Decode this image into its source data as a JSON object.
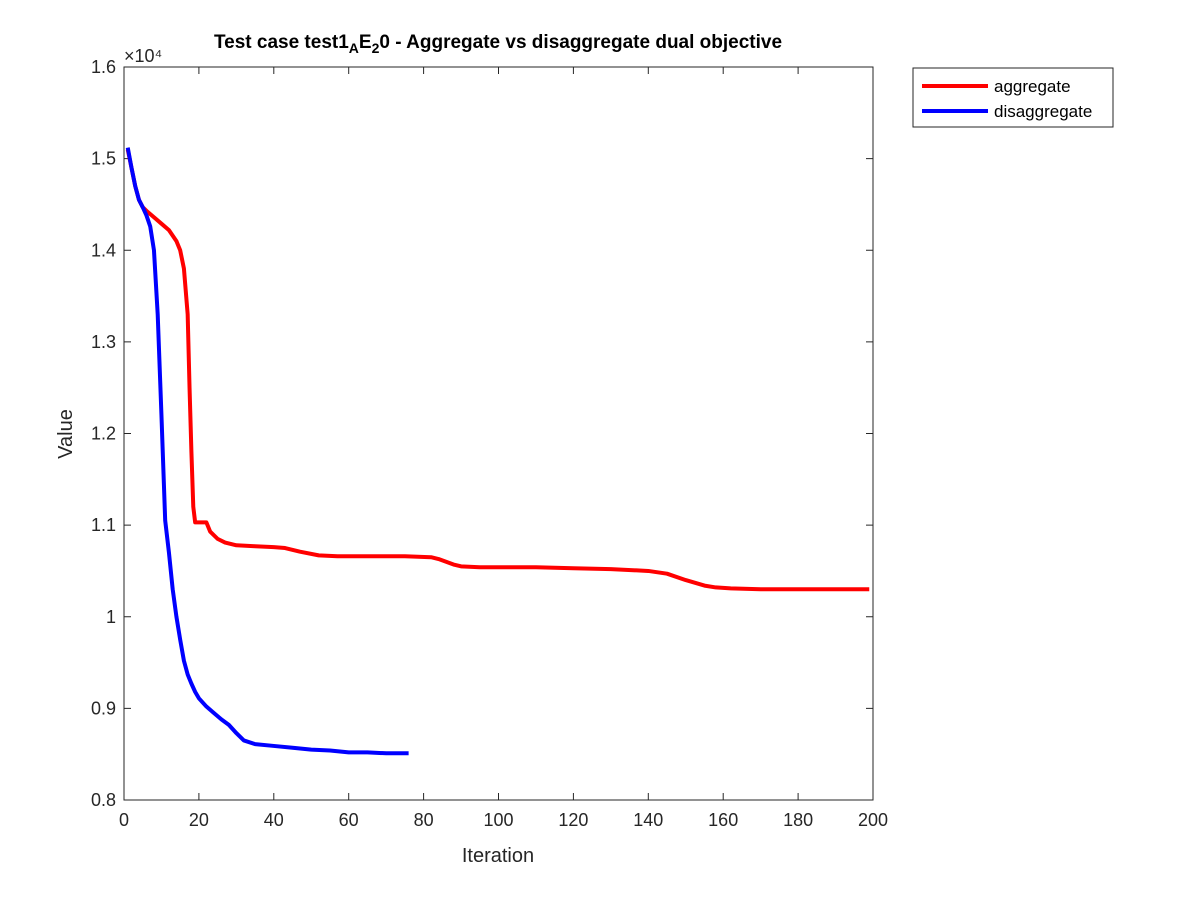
{
  "chart_data": {
    "type": "line",
    "title_parts": {
      "a": "Test case test1",
      "sub1": "A",
      "b": "E",
      "sub2": "2",
      "c": "0 - Aggregate vs disaggregate dual objective"
    },
    "xlabel": "Iteration",
    "ylabel": "Value",
    "exponent_label": "×10⁴",
    "xlim": [
      0,
      200
    ],
    "ylim": [
      0.8,
      1.6
    ],
    "xticks": [
      "0",
      "20",
      "40",
      "60",
      "80",
      "100",
      "120",
      "140",
      "160",
      "180",
      "200"
    ],
    "yticks": [
      "0.8",
      "0.9",
      "1",
      "1.1",
      "1.2",
      "1.3",
      "1.4",
      "1.5",
      "1.6"
    ],
    "grid": false,
    "legend_position": "outside-top-right",
    "series": [
      {
        "name": "aggregate",
        "color": "#ff0000",
        "points": [
          [
            1,
            1.51
          ],
          [
            2,
            1.49
          ],
          [
            3,
            1.47
          ],
          [
            4,
            1.455
          ],
          [
            5,
            1.447
          ],
          [
            6,
            1.443
          ],
          [
            8,
            1.436
          ],
          [
            10,
            1.429
          ],
          [
            12,
            1.422
          ],
          [
            14,
            1.41
          ],
          [
            15,
            1.4
          ],
          [
            16,
            1.38
          ],
          [
            17,
            1.33
          ],
          [
            17.5,
            1.25
          ],
          [
            18,
            1.18
          ],
          [
            18.5,
            1.12
          ],
          [
            19,
            1.103
          ],
          [
            22,
            1.103
          ],
          [
            23,
            1.093
          ],
          [
            25,
            1.085
          ],
          [
            27,
            1.081
          ],
          [
            30,
            1.078
          ],
          [
            35,
            1.077
          ],
          [
            40,
            1.076
          ],
          [
            43,
            1.075
          ],
          [
            47,
            1.071
          ],
          [
            52,
            1.067
          ],
          [
            57,
            1.066
          ],
          [
            65,
            1.066
          ],
          [
            75,
            1.066
          ],
          [
            82,
            1.065
          ],
          [
            84,
            1.063
          ],
          [
            86,
            1.06
          ],
          [
            88,
            1.057
          ],
          [
            90,
            1.055
          ],
          [
            95,
            1.054
          ],
          [
            110,
            1.054
          ],
          [
            120,
            1.053
          ],
          [
            130,
            1.052
          ],
          [
            140,
            1.05
          ],
          [
            145,
            1.047
          ],
          [
            150,
            1.04
          ],
          [
            155,
            1.034
          ],
          [
            158,
            1.032
          ],
          [
            162,
            1.031
          ],
          [
            170,
            1.03
          ],
          [
            199,
            1.03
          ]
        ]
      },
      {
        "name": "disaggregate",
        "color": "#0000ff",
        "points": [
          [
            1,
            1.512
          ],
          [
            2,
            1.49
          ],
          [
            3,
            1.47
          ],
          [
            4,
            1.455
          ],
          [
            5,
            1.447
          ],
          [
            6,
            1.438
          ],
          [
            7,
            1.426
          ],
          [
            8,
            1.4
          ],
          [
            9,
            1.33
          ],
          [
            10,
            1.22
          ],
          [
            11,
            1.105
          ],
          [
            12,
            1.07
          ],
          [
            13,
            1.03
          ],
          [
            14,
            1.0
          ],
          [
            15,
            0.975
          ],
          [
            16,
            0.952
          ],
          [
            17,
            0.937
          ],
          [
            18,
            0.927
          ],
          [
            19,
            0.918
          ],
          [
            20,
            0.911
          ],
          [
            22,
            0.902
          ],
          [
            24,
            0.895
          ],
          [
            26,
            0.888
          ],
          [
            28,
            0.882
          ],
          [
            30,
            0.873
          ],
          [
            32,
            0.865
          ],
          [
            35,
            0.861
          ],
          [
            40,
            0.859
          ],
          [
            45,
            0.857
          ],
          [
            50,
            0.855
          ],
          [
            55,
            0.854
          ],
          [
            60,
            0.852
          ],
          [
            65,
            0.852
          ],
          [
            70,
            0.851
          ],
          [
            76,
            0.851
          ]
        ]
      }
    ]
  }
}
